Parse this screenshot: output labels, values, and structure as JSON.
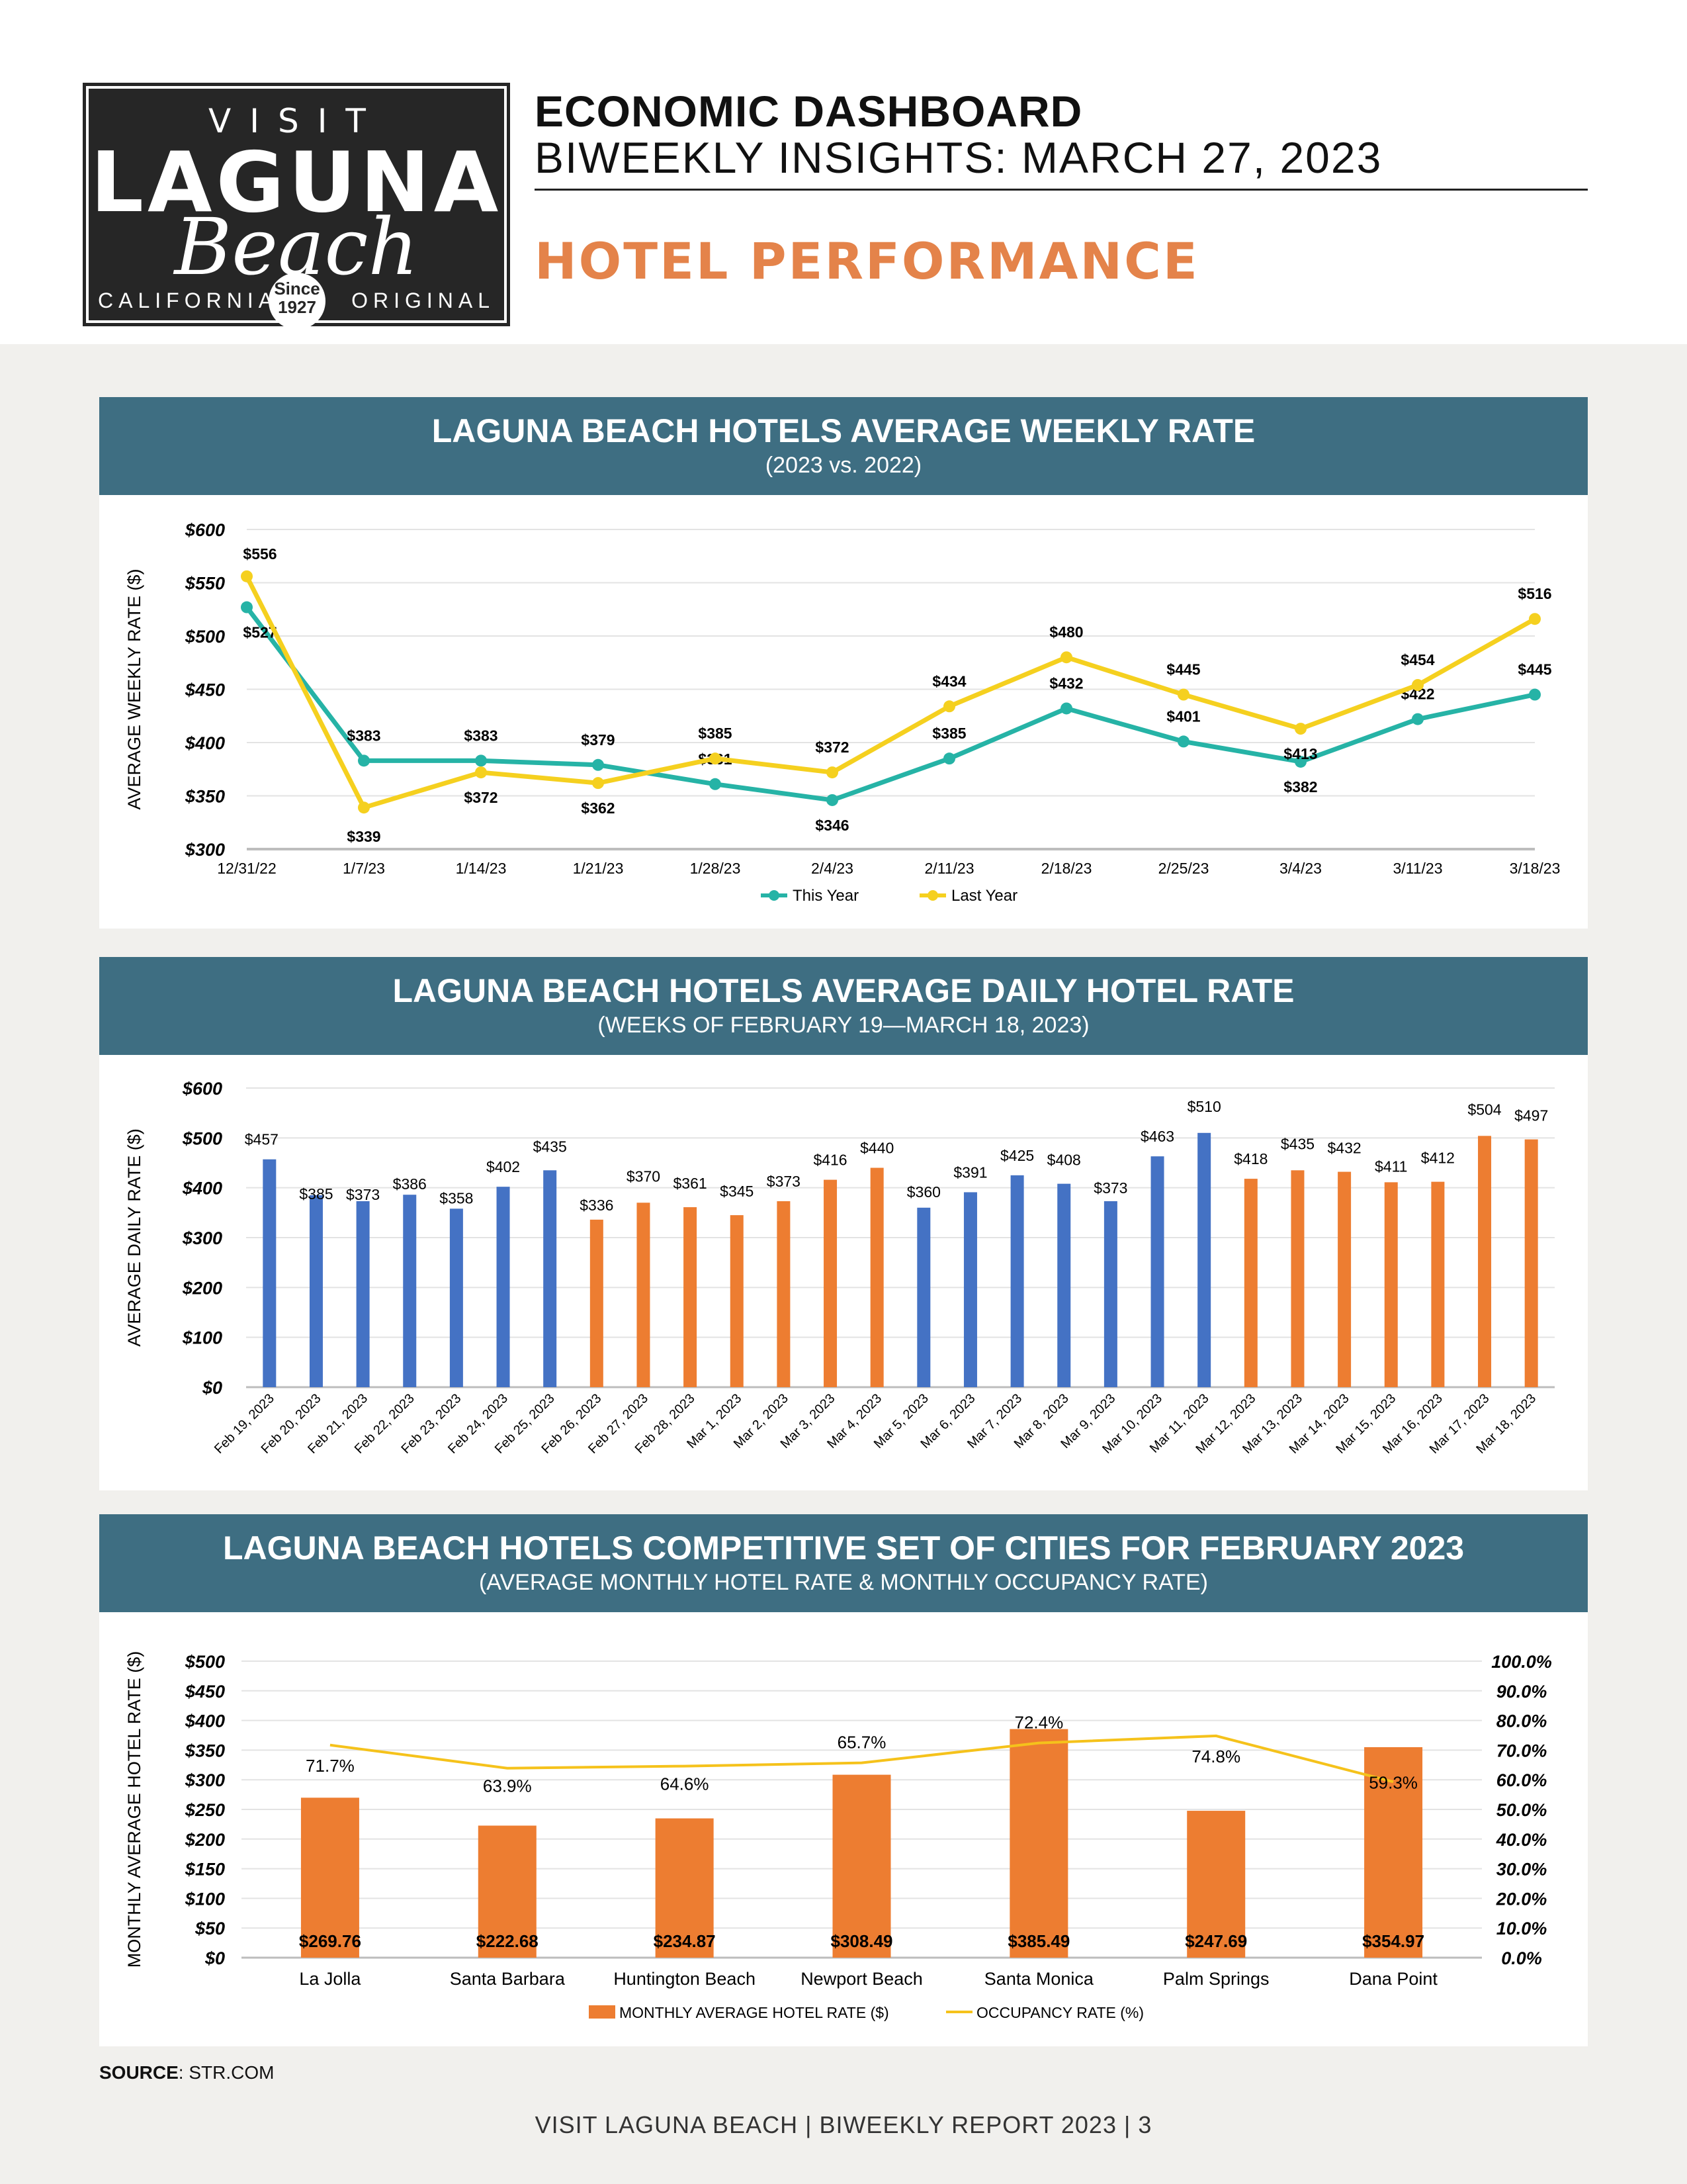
{
  "logo": {
    "visit": "VISIT",
    "laguna": "LAGUNA",
    "beach": "Beach",
    "left": "CALIFORNIA",
    "right": "ORIGINAL",
    "since": "Since",
    "year": "1927"
  },
  "header": {
    "line1": "ECONOMIC DASHBOARD",
    "line2": "BIWEEKLY INSIGHTS: MARCH 27, 2023",
    "section": "HOTEL PERFORMANCE"
  },
  "source": {
    "label": "SOURCE",
    "text": ": STR.COM"
  },
  "footer": "VISIT LAGUNA BEACH  |  BIWEEKLY REPORT 2023  |  3",
  "chart_data": [
    {
      "type": "line",
      "title": "LAGUNA BEACH HOTELS AVERAGE WEEKLY RATE",
      "subtitle": "(2023 vs. 2022)",
      "ylabel": "AVERAGE WEEKLY RATE ($)",
      "ylim": [
        300,
        600
      ],
      "yticks": [
        300,
        350,
        400,
        450,
        500,
        550,
        600
      ],
      "ytick_labels": [
        "$300",
        "$350",
        "$400",
        "$450",
        "$500",
        "$550",
        "$600"
      ],
      "categories": [
        "12/31/22",
        "1/7/23",
        "1/14/23",
        "1/21/23",
        "1/28/23",
        "2/4/23",
        "2/11/23",
        "2/18/23",
        "2/25/23",
        "3/4/23",
        "3/11/23",
        "3/18/23"
      ],
      "series": [
        {
          "name": "This Year",
          "color": "#26b3a6",
          "values": [
            527,
            383,
            383,
            379,
            361,
            346,
            385,
            432,
            401,
            382,
            422,
            445
          ]
        },
        {
          "name": "Last Year",
          "color": "#f5d01f",
          "values": [
            556,
            339,
            372,
            362,
            385,
            372,
            434,
            480,
            445,
            413,
            454,
            516
          ]
        }
      ],
      "legend": "bottom"
    },
    {
      "type": "bar",
      "title": "LAGUNA BEACH HOTELS AVERAGE DAILY HOTEL RATE",
      "subtitle": "(WEEKS OF FEBRUARY 19—MARCH 18, 2023)",
      "ylabel": "AVERAGE DAILY RATE ($)",
      "ylim": [
        0,
        600
      ],
      "yticks": [
        0,
        100,
        200,
        300,
        400,
        500,
        600
      ],
      "ytick_labels": [
        "$0",
        "$100",
        "$200",
        "$300",
        "$400",
        "$500",
        "$600"
      ],
      "categories": [
        "Feb 19, 2023",
        "Feb 20, 2023",
        "Feb 21, 2023",
        "Feb 22, 2023",
        "Feb 23, 2023",
        "Feb 24, 2023",
        "Feb 25, 2023",
        "Feb 26, 2023",
        "Feb 27, 2023",
        "Feb 28, 2023",
        "Mar 1, 2023",
        "Mar 2, 2023",
        "Mar 3, 2023",
        "Mar 4, 2023",
        "Mar 5, 2023",
        "Mar 6, 2023",
        "Mar 7, 2023",
        "Mar 8, 2023",
        "Mar 9, 2023",
        "Mar 10, 2023",
        "Mar 11, 2023",
        "Mar 12, 2023",
        "Mar 13, 2023",
        "Mar 14, 2023",
        "Mar 15, 2023",
        "Mar 16, 2023",
        "Mar 17, 2023",
        "Mar 18, 2023"
      ],
      "values": [
        457,
        385,
        373,
        386,
        358,
        402,
        435,
        336,
        370,
        361,
        345,
        373,
        416,
        440,
        360,
        391,
        425,
        408,
        373,
        463,
        510,
        418,
        435,
        432,
        411,
        412,
        504,
        497
      ],
      "labels": [
        "$457",
        "$385",
        "$373",
        "$386",
        "$358",
        "$402",
        "$435",
        "$336",
        "$370",
        "$361",
        "$345",
        "$373",
        "$416",
        "$440",
        "$360",
        "$391",
        "$425",
        "$408",
        "$373",
        "$463",
        "$510",
        "$418",
        "$435",
        "$432",
        "$411",
        "$412",
        "$504",
        "$497"
      ],
      "colors": [
        "#4472c4",
        "#4472c4",
        "#4472c4",
        "#4472c4",
        "#4472c4",
        "#4472c4",
        "#4472c4",
        "#ed7d31",
        "#ed7d31",
        "#ed7d31",
        "#ed7d31",
        "#ed7d31",
        "#ed7d31",
        "#ed7d31",
        "#4472c4",
        "#4472c4",
        "#4472c4",
        "#4472c4",
        "#4472c4",
        "#4472c4",
        "#4472c4",
        "#ed7d31",
        "#ed7d31",
        "#ed7d31",
        "#ed7d31",
        "#ed7d31",
        "#ed7d31",
        "#ed7d31"
      ]
    },
    {
      "type": "bar",
      "title": "LAGUNA BEACH HOTELS COMPETITIVE SET OF CITIES FOR FEBRUARY 2023",
      "subtitle": "(AVERAGE MONTHLY HOTEL RATE & MONTHLY OCCUPANCY RATE)",
      "ylabel": "MONTHLY AVERAGE HOTEL RATE ($)",
      "ylim": [
        0,
        500
      ],
      "yticks": [
        0,
        50,
        100,
        150,
        200,
        250,
        300,
        350,
        400,
        450,
        500
      ],
      "ytick_labels": [
        "$0",
        "$50",
        "$100",
        "$150",
        "$200",
        "$250",
        "$300",
        "$350",
        "$400",
        "$450",
        "$500"
      ],
      "y2lim": [
        0,
        100
      ],
      "y2tick_labels": [
        "0.0%",
        "10.0%",
        "20.0%",
        "30.0%",
        "40.0%",
        "50.0%",
        "60.0%",
        "70.0%",
        "80.0%",
        "90.0%",
        "100.0%"
      ],
      "categories": [
        "La Jolla",
        "Santa Barbara",
        "Huntington Beach",
        "Newport Beach",
        "Santa Monica",
        "Palm Springs",
        "Dana Point"
      ],
      "series": [
        {
          "name": "MONTHLY AVERAGE HOTEL RATE ($)",
          "kind": "bar",
          "color": "#ed7d31",
          "values": [
            269.76,
            222.68,
            234.87,
            308.49,
            385.49,
            247.69,
            354.97
          ],
          "labels": [
            "$269.76",
            "$222.68",
            "$234.87",
            "$308.49",
            "$385.49",
            "$247.69",
            "$354.97"
          ]
        },
        {
          "name": "OCCUPANCY RATE (%)",
          "kind": "line",
          "axis": "right",
          "color": "#f5c21b",
          "values": [
            71.7,
            63.9,
            64.6,
            65.7,
            72.4,
            74.8,
            59.3
          ],
          "labels": [
            "71.7%",
            "63.9%",
            "64.6%",
            "65.7%",
            "72.4%",
            "74.8%",
            "59.3%"
          ]
        }
      ],
      "legend": "bottom"
    }
  ]
}
